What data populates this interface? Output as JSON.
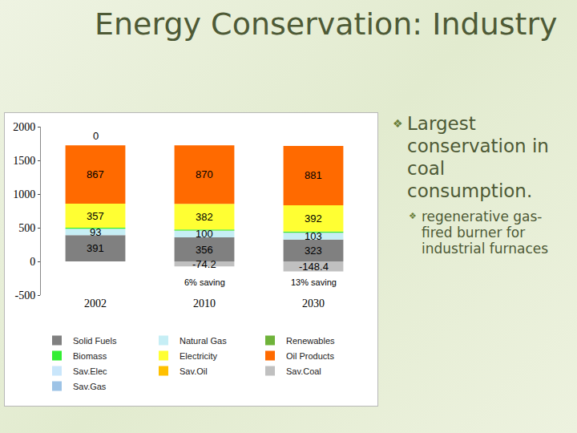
{
  "slide": {
    "title": "Energy Conservation: Industry",
    "bullets": [
      {
        "text": "Largest conservation in coal consumption.",
        "sub": [
          "regenerative gas-fired burner for industrial furnaces"
        ]
      }
    ]
  },
  "chart_data": {
    "type": "bar",
    "stacked": true,
    "grid": false,
    "legend": "bottom",
    "categories": [
      "2002",
      "2010",
      "2030"
    ],
    "ylim": [
      -500,
      2000
    ],
    "yticks": [
      -500,
      0,
      500,
      1000,
      1500,
      2000
    ],
    "series": [
      {
        "name": "Solid Fuels",
        "color": "#808080",
        "values": [
          391,
          356,
          323
        ],
        "data_labels": true
      },
      {
        "name": "Natural Gas",
        "color": "#c6eef5",
        "values": [
          93,
          100,
          103
        ],
        "data_labels": true
      },
      {
        "name": "Renewables",
        "color": "#6fb33a",
        "values": [
          2,
          2,
          2
        ],
        "data_labels": false
      },
      {
        "name": "Biomass",
        "color": "#33ee33",
        "values": [
          14,
          14,
          14
        ],
        "data_labels": false
      },
      {
        "name": "Electricity",
        "color": "#ffff33",
        "values": [
          357,
          382,
          392
        ],
        "data_labels": true
      },
      {
        "name": "Oil Products",
        "color": "#ff6a00",
        "values": [
          867,
          870,
          881
        ],
        "data_labels": true
      },
      {
        "name": "Sav.Elec",
        "color": "#c9e6fb",
        "values": [
          null,
          null,
          null
        ],
        "data_labels": false
      },
      {
        "name": "Sav.Oil",
        "color": "#ffc000",
        "values": [
          null,
          null,
          null
        ],
        "data_labels": false
      },
      {
        "name": "Sav.Coal",
        "color": "#c0c0c0",
        "values": [
          0,
          -74.2,
          -148.4
        ],
        "data_labels": true
      },
      {
        "name": "Sav.Gas",
        "color": "#9dc3e6",
        "values": [
          null,
          null,
          null
        ],
        "data_labels": false
      }
    ],
    "annotations": [
      {
        "text": "6% saving",
        "x": "2010",
        "y": -310
      },
      {
        "text": "13% saving",
        "x": "2030",
        "y": -310
      }
    ]
  }
}
